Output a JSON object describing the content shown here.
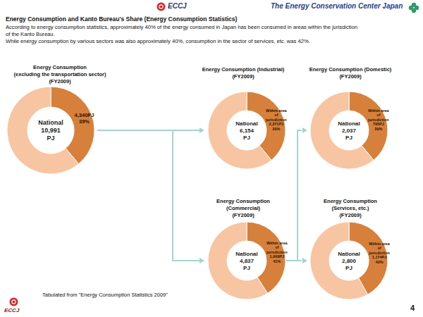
{
  "header": {
    "logo": "ECCJ",
    "organization": "The Energy Conservation Center Japan"
  },
  "title": "Energy Consumption and Kanto Bureau's Share (Energy Consumption Statistics)",
  "description": [
    "According to energy consumption statistics, approximately 40% of the energy consumed in Japan has been consumed in areas within the jurisdiction",
    "of the Kanto Bureau.",
    "While energy consumption by various sectors was also approximately 40%, consumption in the sector of services, etc. was 42%."
  ],
  "chart_data": [
    {
      "type": "pie",
      "title": "Energy Consumption\n(excluding the transportation sector)\n(FY2009)",
      "center_label": "National\n10,991\nPJ",
      "annotation": "4,340PJ",
      "values": [
        39,
        61
      ],
      "value_labels": [
        "39%",
        null
      ],
      "colors": [
        "#d7803c",
        "#f7c5a2"
      ],
      "data_labels": true
    },
    {
      "type": "pie",
      "title": "Energy Consumption (Industrial)\n(FY2009)",
      "center_label": "National\n6,154\nPJ",
      "annotation": "Within area\nof\njurisdiction\n2,371PJ",
      "values": [
        39,
        61
      ],
      "value_labels": [
        "39%",
        null
      ],
      "colors": [
        "#d7803c",
        "#f7c5a2"
      ],
      "data_labels": true
    },
    {
      "type": "pie",
      "title": "Energy Consumption (Domestic)\n(FY2009)",
      "center_label": "National\n2,037\nPJ",
      "annotation": "Within area\nof\njurisdiction\n795PJ",
      "values": [
        39,
        61
      ],
      "value_labels": [
        "39%",
        null
      ],
      "colors": [
        "#d7803c",
        "#f7c5a2"
      ],
      "data_labels": true
    },
    {
      "type": "pie",
      "title": "Energy Consumption\n(Commercial)\n(FY2009)",
      "center_label": "National\n4,837\nPJ",
      "annotation": "Within area\nof\njurisdiction\n1,969PJ",
      "values": [
        41,
        59
      ],
      "value_labels": [
        "41%",
        null
      ],
      "colors": [
        "#d7803c",
        "#f7c5a2"
      ],
      "data_labels": true
    },
    {
      "type": "pie",
      "title": "Energy Consumption\n(Services, etc.)\n(FY2009)",
      "center_label": "National\n2,800\nPJ",
      "annotation": "Within area\nof\njurisdiction\n1,174PJ",
      "values": [
        42,
        58
      ],
      "value_labels": [
        "42%",
        null
      ],
      "colors": [
        "#d7803c",
        "#f7c5a2"
      ],
      "data_labels": true
    }
  ],
  "footer": {
    "source": "Tabulated from \"Energy Consumption Statistics 2009\"",
    "logo": "ECCJ",
    "page_number": 4
  }
}
